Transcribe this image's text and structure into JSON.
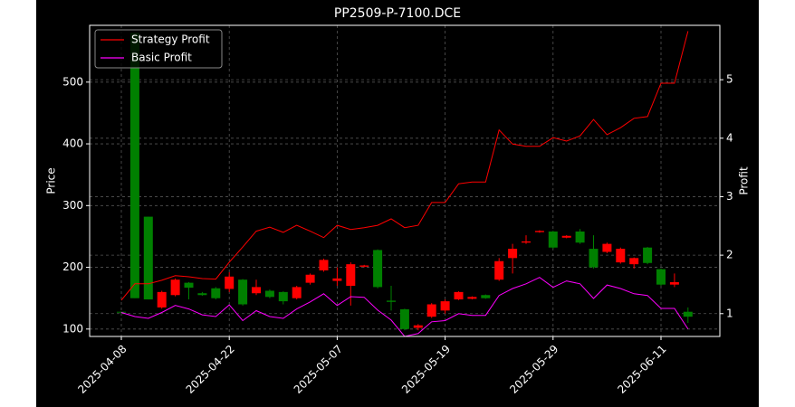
{
  "chart_data": {
    "type": "candlestick",
    "title": "PP2509-P-7100.DCE",
    "y_label": "Price",
    "y2_label": "Profit",
    "categories": [
      "2025-04-08",
      null,
      null,
      null,
      null,
      null,
      null,
      null,
      "2025-04-22",
      null,
      null,
      null,
      null,
      null,
      null,
      null,
      "2025-05-07",
      null,
      null,
      null,
      null,
      null,
      null,
      null,
      "2025-05-19",
      null,
      null,
      null,
      null,
      null,
      null,
      null,
      "2025-05-29",
      null,
      null,
      null,
      null,
      null,
      null,
      null,
      "2025-06-11",
      null,
      null
    ],
    "open": [
      128,
      580,
      282,
      135,
      155,
      175,
      158,
      166,
      165,
      180,
      158,
      162,
      160,
      150,
      175,
      195,
      178,
      170,
      201,
      228,
      146,
      132,
      102,
      120,
      130,
      148,
      149,
      155,
      180,
      215,
      240,
      257,
      258,
      248,
      258,
      230,
      225,
      208,
      205,
      232,
      197,
      172,
      128
    ],
    "high": [
      128,
      580,
      282,
      162,
      182,
      176,
      160,
      168,
      192,
      181,
      180,
      164,
      161,
      170,
      190,
      214,
      200,
      208,
      204,
      229,
      170,
      133,
      108,
      142,
      148,
      161,
      153,
      156,
      215,
      238,
      252,
      260,
      259,
      252,
      262,
      252,
      240,
      232,
      216,
      233,
      198,
      190,
      135
    ],
    "low": [
      126,
      150,
      148,
      133,
      153,
      148,
      154,
      148,
      160,
      138,
      155,
      150,
      140,
      148,
      172,
      193,
      170,
      138,
      200,
      166,
      130,
      98,
      98,
      118,
      125,
      147,
      148,
      149,
      178,
      190,
      238,
      256,
      230,
      247,
      238,
      198,
      223,
      206,
      198,
      205,
      170,
      168,
      110
    ],
    "close": [
      127,
      150,
      148,
      160,
      180,
      167,
      155,
      150,
      185,
      140,
      168,
      152,
      145,
      168,
      188,
      212,
      182,
      205,
      203,
      168,
      144,
      100,
      106,
      140,
      145,
      160,
      152,
      150,
      210,
      230,
      242,
      259,
      232,
      251,
      240,
      200,
      238,
      230,
      215,
      207,
      172,
      176,
      120
    ],
    "up_color": "#ff0000",
    "down_color": "#008000",
    "series": [
      {
        "name": "Strategy Profit",
        "color": "#ff0000",
        "axis": "y2",
        "values": [
          1.23,
          1.51,
          1.51,
          1.57,
          1.65,
          1.63,
          1.6,
          1.59,
          1.88,
          2.14,
          2.41,
          2.48,
          2.39,
          2.51,
          2.41,
          2.3,
          2.51,
          2.44,
          2.47,
          2.51,
          2.62,
          2.47,
          2.51,
          2.9,
          2.9,
          3.22,
          3.25,
          3.25,
          4.14,
          3.9,
          3.86,
          3.86,
          4.01,
          3.95,
          4.04,
          4.32,
          4.06,
          4.18,
          4.34,
          4.37,
          4.94,
          4.94,
          5.83
        ]
      },
      {
        "name": "Basic Profit",
        "color": "#ff00ff",
        "axis": "y2",
        "values": [
          1.02,
          0.95,
          0.92,
          1.02,
          1.14,
          1.08,
          0.98,
          0.95,
          1.15,
          0.88,
          1.05,
          0.95,
          0.92,
          1.08,
          1.2,
          1.34,
          1.14,
          1.29,
          1.28,
          1.06,
          0.89,
          0.61,
          0.66,
          0.86,
          0.88,
          1.0,
          0.97,
          0.97,
          1.31,
          1.43,
          1.51,
          1.62,
          1.45,
          1.56,
          1.51,
          1.26,
          1.49,
          1.43,
          1.34,
          1.31,
          1.09,
          1.09,
          0.74
        ]
      }
    ],
    "ylim": [
      88,
      592
    ],
    "yticks": [
      100,
      200,
      300,
      400,
      500
    ],
    "y2lim": [
      0.61,
      5.93
    ],
    "y2ticks": [
      1,
      2,
      3,
      4,
      5
    ],
    "grid": true,
    "legend": "upper left"
  }
}
